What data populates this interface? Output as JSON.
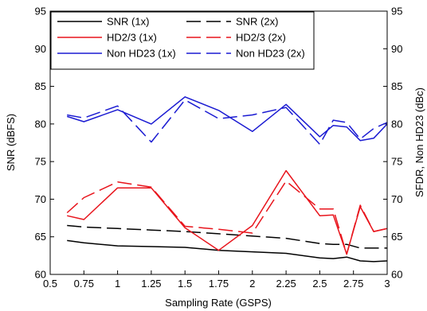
{
  "chart_data": {
    "type": "line",
    "xlabel": "Sampling Rate (GSPS)",
    "ylabel": "SNR (dBFS)",
    "y2label": "SFDR, Non HD23 (dBc)",
    "xlim": [
      0.5,
      3
    ],
    "ylim": [
      60,
      95
    ],
    "y2lim": [
      60,
      95
    ],
    "x_ticks": [
      "0.5",
      "0.75",
      "1",
      "1.25",
      "1.5",
      "1.75",
      "2",
      "2.25",
      "2.5",
      "2.75",
      "3"
    ],
    "y_ticks": [
      "60",
      "65",
      "70",
      "75",
      "80",
      "85",
      "90",
      "95"
    ],
    "y2_ticks": [
      "60",
      "65",
      "70",
      "75",
      "80",
      "85",
      "90",
      "95"
    ],
    "grid": false,
    "legend_position": "top-left",
    "series": [
      {
        "name": "SNR (1x)",
        "color": "#000000",
        "dash": "solid",
        "axis": "left",
        "x": [
          0.625,
          0.75,
          1,
          1.25,
          1.5,
          1.75,
          2,
          2.25,
          2.5,
          2.6,
          2.7,
          2.8,
          2.9,
          3
        ],
        "y": [
          64.5,
          64.2,
          63.8,
          63.7,
          63.6,
          63.2,
          63.0,
          62.8,
          62.2,
          62.1,
          62.3,
          61.8,
          61.7,
          61.8
        ]
      },
      {
        "name": "SNR (2x)",
        "color": "#000000",
        "dash": "dashed",
        "axis": "left",
        "x": [
          0.625,
          0.75,
          1,
          1.25,
          1.5,
          1.75,
          2,
          2.25,
          2.5,
          2.6,
          2.7,
          2.8,
          2.9,
          3
        ],
        "y": [
          66.5,
          66.3,
          66.1,
          65.9,
          65.7,
          65.4,
          65.1,
          64.8,
          64.1,
          64.0,
          64.0,
          63.5,
          63.5,
          63.5
        ]
      },
      {
        "name": "HD2/3 (1x)",
        "color": "#e8141c",
        "dash": "solid",
        "axis": "right",
        "x": [
          0.625,
          0.75,
          1,
          1.25,
          1.5,
          1.75,
          2,
          2.25,
          2.5,
          2.6,
          2.7,
          2.8,
          2.9,
          3
        ],
        "y": [
          67.8,
          67.3,
          71.5,
          71.5,
          66.2,
          63.2,
          66.5,
          73.8,
          67.8,
          67.9,
          62.7,
          69.0,
          65.7,
          66.1
        ]
      },
      {
        "name": "HD2/3 (2x)",
        "color": "#e8141c",
        "dash": "dashed",
        "axis": "right",
        "x": [
          0.625,
          0.75,
          1,
          1.25,
          1.5,
          1.75,
          2,
          2.25,
          2.5,
          2.6,
          2.7,
          2.8,
          2.9,
          3
        ],
        "y": [
          68.2,
          70.2,
          72.3,
          71.6,
          66.4,
          66.0,
          65.5,
          72.4,
          68.7,
          68.7,
          62.7,
          69.2,
          65.7,
          66.1
        ]
      },
      {
        "name": "Non HD23 (1x)",
        "color": "#1a1ad2",
        "dash": "solid",
        "axis": "right",
        "x": [
          0.625,
          0.75,
          1,
          1.25,
          1.5,
          1.75,
          2,
          2.25,
          2.5,
          2.6,
          2.7,
          2.8,
          2.9,
          3
        ],
        "y": [
          81.0,
          80.3,
          81.9,
          80.0,
          83.6,
          81.8,
          79.0,
          82.6,
          78.3,
          79.8,
          79.6,
          77.8,
          78.1,
          80.0
        ]
      },
      {
        "name": "Non HD23 (2x)",
        "color": "#1a1ad2",
        "dash": "dashed",
        "axis": "right",
        "x": [
          0.625,
          0.75,
          1,
          1.25,
          1.5,
          1.75,
          2,
          2.25,
          2.5,
          2.6,
          2.7,
          2.8,
          2.9,
          3
        ],
        "y": [
          81.2,
          80.8,
          82.4,
          77.6,
          83.2,
          80.7,
          81.2,
          82.2,
          77.3,
          80.5,
          80.2,
          78.0,
          79.4,
          80.2
        ]
      }
    ]
  }
}
